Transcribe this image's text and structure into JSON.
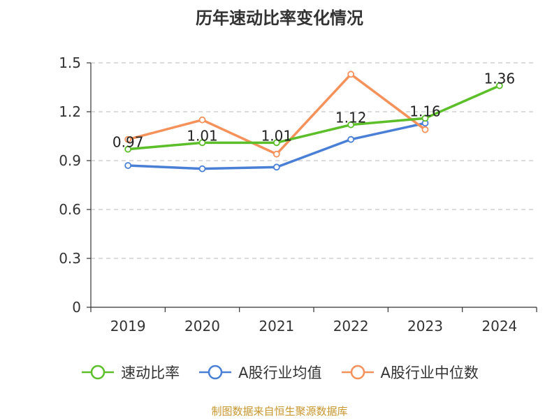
{
  "chart_data": {
    "type": "line",
    "title": "历年速动比率变化情况",
    "categories": [
      "2019",
      "2020",
      "2021",
      "2022",
      "2023",
      "2024"
    ],
    "ylim": [
      0,
      1.5
    ],
    "yticks": [
      "0",
      "0.3",
      "0.6",
      "0.9",
      "1.2",
      "1.5"
    ],
    "grid": true,
    "legend_position": "bottom",
    "series": [
      {
        "name": "速动比率",
        "color": "#5cbf2a",
        "values": [
          0.97,
          1.01,
          1.01,
          1.12,
          1.16,
          1.36
        ],
        "labels": [
          "0.97",
          "1.01",
          "1.01",
          "1.12",
          "1.16",
          "1.36"
        ]
      },
      {
        "name": "A股行业均值",
        "color": "#4a7fd6",
        "values": [
          0.87,
          0.85,
          0.86,
          1.03,
          1.13,
          null
        ]
      },
      {
        "name": "A股行业中位数",
        "color": "#f5915a",
        "values": [
          1.03,
          1.15,
          0.94,
          1.43,
          1.09,
          null
        ]
      }
    ]
  },
  "footer": "制图数据来自恒生聚源数据库"
}
